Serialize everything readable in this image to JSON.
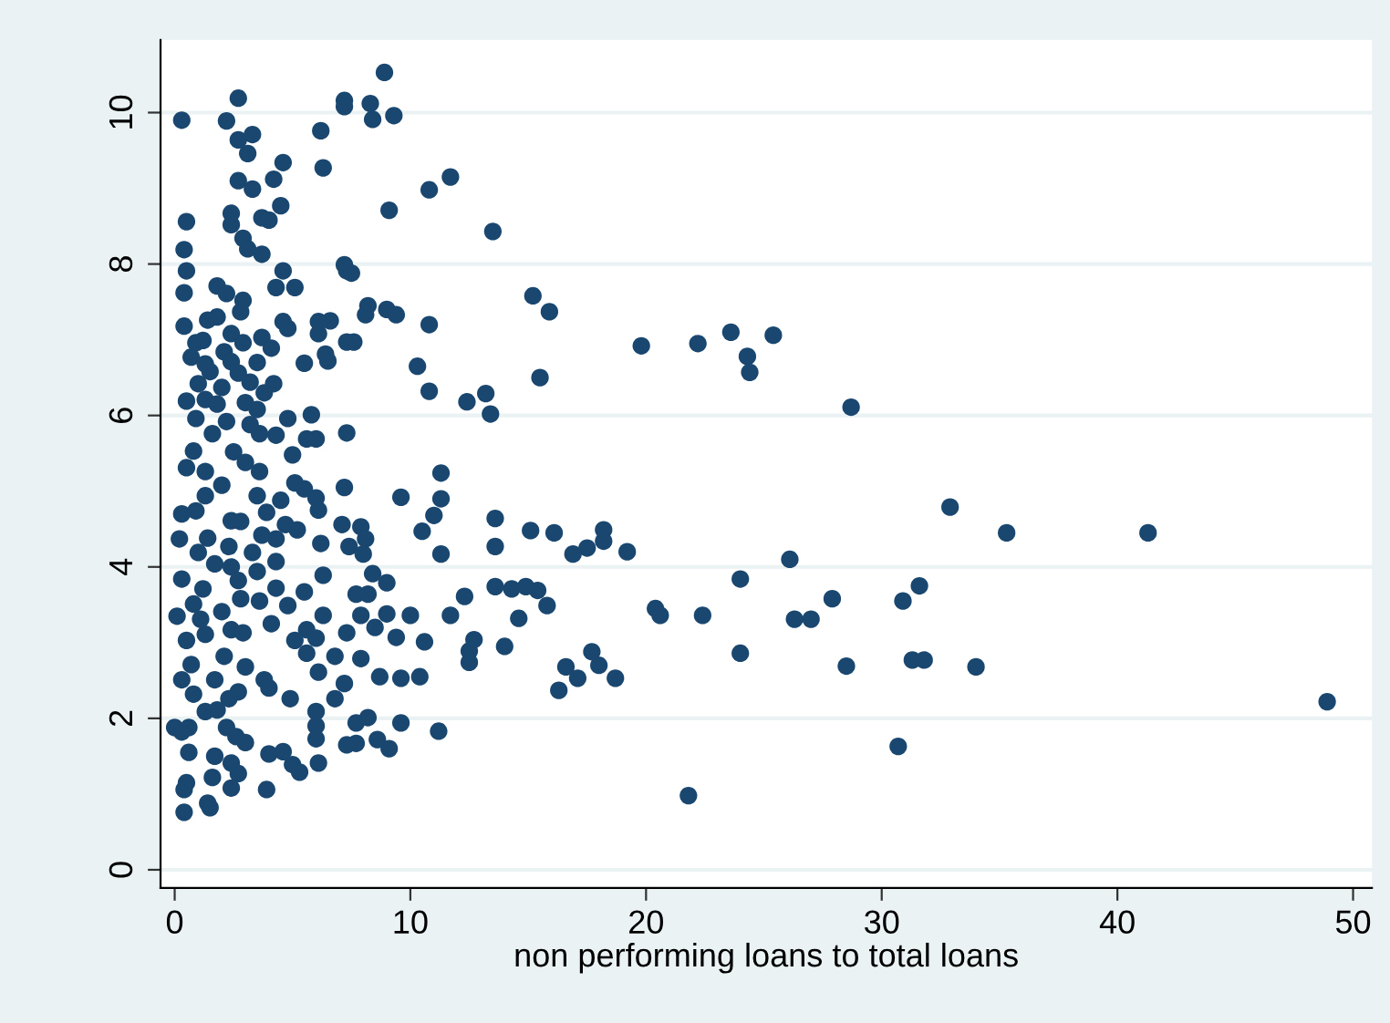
{
  "chart_data": {
    "type": "scatter",
    "xlabel": "non performing loans to total loans",
    "color": "#1a476f",
    "marker": "circle",
    "grid": "y",
    "xlim": [
      -0.6,
      50.8
    ],
    "ylim": [
      -0.24,
      10.96
    ],
    "xticks": [
      0,
      10,
      20,
      30,
      40,
      50
    ],
    "yticks": [
      0,
      2,
      4,
      6,
      8,
      10
    ],
    "x": [
      48.9,
      41.3,
      35.3,
      32.9,
      30.7,
      30.9,
      31.6,
      31.3,
      31.8,
      34.0,
      28.7,
      28.5,
      27.9,
      26.1,
      26.3,
      27.0,
      24.0,
      24.0,
      21.8,
      22.4,
      20.4,
      20.6,
      19.8,
      22.2,
      23.6,
      24.3,
      24.4,
      25.4,
      19.2,
      18.2,
      18.2,
      17.5,
      16.9,
      16.1,
      15.1,
      18.7,
      18.0,
      17.7,
      17.1,
      16.6,
      16.3,
      15.8,
      15.4,
      14.9,
      14.3,
      13.6,
      14.0,
      14.6,
      13.6,
      13.6,
      13.5,
      15.2,
      15.9,
      15.5,
      13.2,
      13.4,
      12.4,
      12.3,
      11.7,
      12.5,
      12.7,
      12.5,
      11.3,
      11.3,
      11.0,
      10.5,
      11.3,
      11.2,
      11.7,
      10.8,
      10.8,
      10.3,
      10.8,
      10.0,
      10.6,
      10.4,
      8.9,
      2.7,
      7.2,
      7.2,
      8.3,
      8.4,
      9.3,
      0.3,
      2.2,
      6.2,
      3.3,
      2.7,
      3.1,
      4.6,
      6.3,
      2.7,
      4.2,
      3.3,
      9.1,
      4.5,
      2.4,
      3.7,
      4.0,
      0.5,
      2.4,
      2.9,
      0.4,
      3.1,
      3.7,
      0.5,
      7.2,
      7.3,
      7.5,
      4.6,
      1.8,
      4.3,
      5.1,
      0.4,
      2.2,
      2.9,
      8.2,
      9.0,
      9.4,
      8.1,
      2.8,
      0.4,
      1.4,
      4.6,
      4.8,
      6.1,
      6.6,
      6.1,
      1.8,
      2.4,
      3.7,
      7.3,
      7.6,
      0.9,
      1.2,
      2.9,
      4.1,
      2.1,
      6.4,
      6.5,
      0.7,
      1.3,
      2.4,
      3.5,
      5.5,
      1.5,
      2.7,
      1.0,
      3.2,
      4.2,
      2.0,
      3.8,
      0.5,
      1.3,
      1.8,
      3.0,
      3.5,
      5.8,
      4.8,
      0.9,
      2.2,
      3.2,
      1.6,
      3.6,
      7.3,
      4.3,
      5.6,
      6.0,
      0.8,
      2.5,
      5.0,
      3.0,
      0.5,
      1.3,
      3.6,
      2.0,
      5.1,
      5.5,
      7.2,
      9.6,
      1.3,
      3.5,
      4.5,
      6.0,
      6.1,
      0.3,
      0.9,
      3.9,
      2.4,
      2.8,
      4.7,
      7.1,
      7.9,
      5.2,
      3.7,
      4.3,
      8.1,
      0.2,
      1.4,
      6.2,
      2.3,
      7.4,
      1.0,
      3.3,
      8.0,
      1.7,
      4.3,
      2.4,
      3.5,
      8.4,
      0.3,
      2.7,
      9.0,
      6.3,
      1.2,
      4.3,
      5.5,
      7.7,
      8.2,
      3.6,
      0.8,
      2.8,
      4.8,
      2.0,
      0.1,
      6.3,
      7.9,
      9.0,
      1.1,
      4.1,
      8.5,
      2.4,
      2.9,
      5.6,
      7.3,
      1.3,
      6.0,
      0.5,
      9.4,
      5.1,
      5.6,
      6.8,
      2.1,
      7.9,
      0.7,
      3.0,
      6.1,
      8.7,
      9.6,
      0.3,
      1.7,
      3.8,
      7.2,
      4.0,
      0.8,
      2.7,
      2.3,
      6.8,
      4.9,
      1.3,
      1.8,
      6.0,
      8.2,
      0.0,
      0.6,
      0.3,
      2.2,
      7.7,
      9.6,
      6.0,
      2.6,
      3.0,
      6.0,
      7.7,
      7.3,
      8.6,
      9.1,
      0.6,
      1.7,
      4.0,
      4.6,
      5.0,
      5.3,
      6.1,
      2.4,
      2.7,
      1.6,
      2.4,
      3.9,
      0.4,
      0.5,
      1.4,
      1.5,
      0.4
    ],
    "values": [
      2.22,
      4.45,
      4.45,
      4.79,
      1.63,
      3.55,
      3.75,
      2.77,
      2.77,
      2.68,
      6.11,
      2.69,
      3.58,
      4.1,
      3.31,
      3.31,
      3.84,
      2.86,
      0.98,
      3.36,
      3.45,
      3.36,
      6.92,
      6.95,
      7.1,
      6.78,
      6.57,
      7.06,
      4.2,
      4.49,
      4.34,
      4.25,
      4.17,
      4.45,
      4.48,
      2.53,
      2.7,
      2.88,
      2.53,
      2.68,
      2.37,
      3.49,
      3.69,
      3.74,
      3.71,
      3.74,
      2.95,
      3.32,
      4.64,
      4.27,
      8.43,
      7.58,
      7.37,
      6.5,
      6.29,
      6.02,
      6.18,
      3.61,
      3.36,
      2.89,
      3.04,
      2.74,
      5.24,
      4.9,
      4.68,
      4.47,
      4.17,
      1.83,
      9.15,
      8.98,
      7.2,
      6.65,
      6.32,
      3.36,
      3.01,
      2.55,
      10.53,
      10.19,
      10.16,
      10.08,
      10.12,
      9.91,
      9.96,
      9.9,
      9.89,
      9.76,
      9.71,
      9.64,
      9.46,
      9.34,
      9.27,
      9.1,
      9.12,
      8.99,
      8.71,
      8.77,
      8.67,
      8.61,
      8.58,
      8.56,
      8.52,
      8.34,
      8.19,
      8.2,
      8.13,
      7.91,
      7.99,
      7.91,
      7.88,
      7.91,
      7.71,
      7.69,
      7.69,
      7.62,
      7.61,
      7.52,
      7.45,
      7.4,
      7.33,
      7.33,
      7.37,
      7.18,
      7.26,
      7.24,
      7.15,
      7.24,
      7.25,
      7.08,
      7.3,
      7.08,
      7.03,
      6.97,
      6.97,
      6.96,
      6.99,
      6.96,
      6.89,
      6.84,
      6.81,
      6.72,
      6.77,
      6.68,
      6.71,
      6.7,
      6.69,
      6.58,
      6.56,
      6.42,
      6.44,
      6.42,
      6.37,
      6.3,
      6.19,
      6.21,
      6.15,
      6.17,
      6.08,
      6.01,
      5.96,
      5.96,
      5.92,
      5.88,
      5.76,
      5.76,
      5.77,
      5.74,
      5.69,
      5.69,
      5.53,
      5.52,
      5.48,
      5.38,
      5.31,
      5.26,
      5.26,
      5.08,
      5.11,
      5.03,
      5.05,
      4.92,
      4.94,
      4.94,
      4.88,
      4.91,
      4.75,
      4.7,
      4.74,
      4.72,
      4.61,
      4.6,
      4.56,
      4.56,
      4.53,
      4.49,
      4.42,
      4.37,
      4.37,
      4.37,
      4.38,
      4.31,
      4.27,
      4.27,
      4.19,
      4.19,
      4.17,
      4.04,
      4.07,
      4.0,
      3.94,
      3.91,
      3.84,
      3.82,
      3.79,
      3.89,
      3.71,
      3.72,
      3.67,
      3.64,
      3.64,
      3.55,
      3.51,
      3.58,
      3.49,
      3.41,
      3.35,
      3.36,
      3.36,
      3.38,
      3.31,
      3.25,
      3.2,
      3.17,
      3.13,
      3.17,
      3.13,
      3.11,
      3.06,
      3.03,
      3.07,
      3.03,
      2.86,
      2.82,
      2.82,
      2.79,
      2.71,
      2.68,
      2.61,
      2.55,
      2.53,
      2.51,
      2.51,
      2.51,
      2.46,
      2.4,
      2.32,
      2.35,
      2.26,
      2.26,
      2.26,
      2.09,
      2.11,
      2.09,
      2.01,
      1.88,
      1.88,
      1.82,
      1.88,
      1.94,
      1.94,
      1.9,
      1.76,
      1.68,
      1.73,
      1.67,
      1.65,
      1.72,
      1.6,
      1.55,
      1.5,
      1.53,
      1.56,
      1.39,
      1.29,
      1.41,
      1.41,
      1.27,
      1.22,
      1.08,
      1.06,
      1.06,
      1.15,
      0.88,
      0.82,
      0.76
    ]
  }
}
